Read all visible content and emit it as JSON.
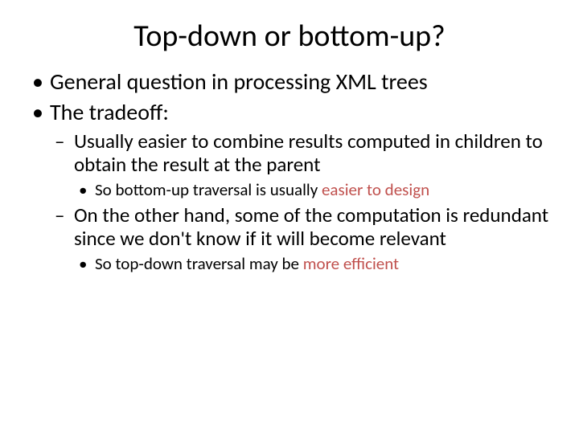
{
  "accent_color": "#c0504d",
  "title": "Top-down or bottom-up?",
  "bullets": {
    "b1": "General question in processing XML trees",
    "b2": "The tradeoff:",
    "s1": "Usually easier to combine results computed in children to obtain the result at the parent",
    "s1a_pre": "So bottom-up traversal is usually ",
    "s1a_accent": "easier to design",
    "s2": "On the other hand, some of the computation is redundant since we don't know if it will become relevant",
    "s2a_pre": "So top-down traversal may be ",
    "s2a_accent": "more efficient"
  }
}
